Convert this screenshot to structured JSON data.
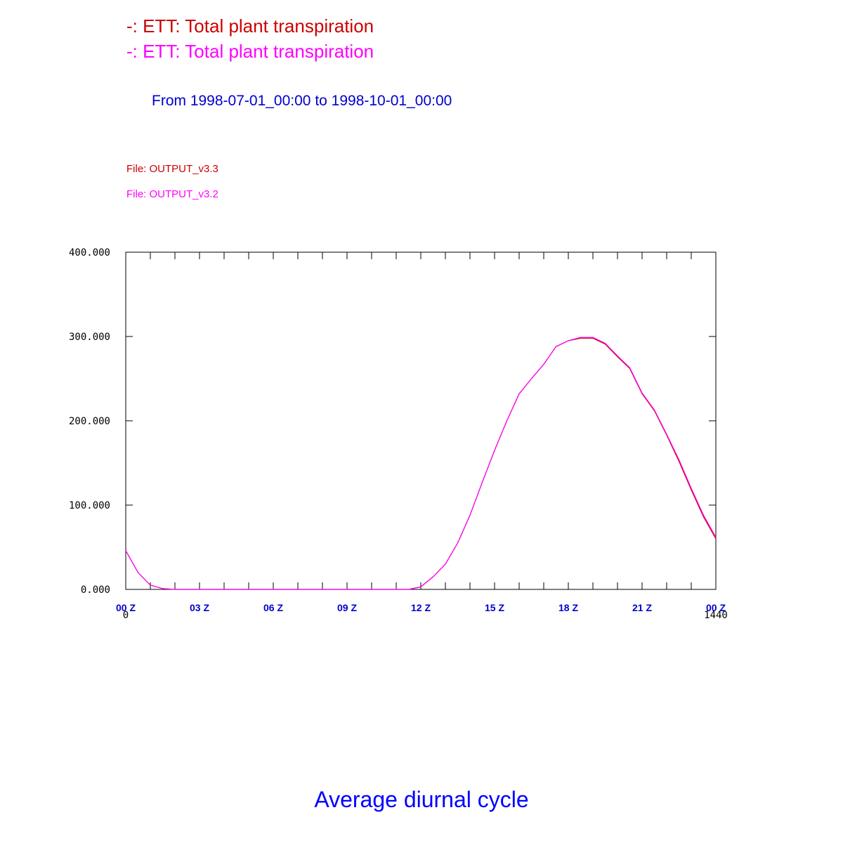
{
  "header": {
    "series_lines": [
      {
        "text": "-: ETT: Total plant transpiration",
        "color": "#cc0000"
      },
      {
        "text": "-: ETT: Total plant transpiration",
        "color": "#ff00ff"
      }
    ],
    "date_range": "From 1998-07-01_00:00 to 1998-10-01_00:00",
    "files": [
      {
        "text": "File: OUTPUT_v3.3",
        "color": "#cc0000"
      },
      {
        "text": "File: OUTPUT_v3.2",
        "color": "#ff00ff"
      }
    ]
  },
  "footer_title": "Average diurnal cycle",
  "colors": {
    "title_blue": "#0000ff",
    "dark_blue": "#0000cc",
    "axis": "#000000"
  },
  "chart_data": {
    "type": "line",
    "xlim": [
      0,
      24
    ],
    "ylim": [
      0,
      400
    ],
    "x_range_labels": [
      "0",
      "1440"
    ],
    "x_tick_labels": [
      "00 Z",
      "03 Z",
      "06 Z",
      "09 Z",
      "12 Z",
      "15 Z",
      "18 Z",
      "21 Z",
      "00 Z"
    ],
    "x_tick_values": [
      0,
      3,
      6,
      9,
      12,
      15,
      18,
      21,
      24
    ],
    "y_tick_labels": [
      "0.000",
      "100.000",
      "200.000",
      "300.000",
      "400.000"
    ],
    "y_tick_values": [
      0,
      100,
      200,
      300,
      400
    ],
    "minor_tick_step": 1,
    "grid": false,
    "x": [
      0,
      0.5,
      1,
      1.5,
      2,
      2.5,
      3,
      3.5,
      4,
      4.5,
      5,
      5.5,
      6,
      6.5,
      7,
      7.5,
      8,
      8.5,
      9,
      9.5,
      10,
      10.5,
      11,
      11.5,
      12,
      12.5,
      13,
      13.5,
      14,
      14.5,
      15,
      15.5,
      16,
      16.5,
      17,
      17.5,
      18,
      18.5,
      19,
      19.5,
      20,
      20.5,
      21,
      21.5,
      22,
      22.5,
      23,
      23.5,
      24
    ],
    "series": [
      {
        "color": "#cc0000",
        "values": [
          46,
          20,
          5,
          1,
          0,
          0,
          0,
          0,
          0,
          0,
          0,
          0,
          0,
          0,
          0,
          0,
          0,
          0,
          0,
          0,
          0,
          0,
          0,
          0,
          3,
          15,
          30,
          55,
          88,
          127,
          165,
          200,
          232,
          250,
          267,
          288,
          295,
          298,
          298,
          291,
          276,
          262,
          232,
          212,
          183,
          152,
          118,
          86,
          60
        ]
      },
      {
        "color": "#ff00ff",
        "values": [
          46,
          20,
          5,
          1,
          0,
          0,
          0,
          0,
          0,
          0,
          0,
          0,
          0,
          0,
          0,
          0,
          0,
          0,
          0,
          0,
          0,
          0,
          0,
          0,
          3,
          15,
          30,
          55,
          88,
          127,
          165,
          200,
          232,
          250,
          267,
          288,
          295,
          299,
          299,
          292,
          277,
          263,
          233,
          213,
          184,
          154,
          120,
          88,
          62
        ]
      }
    ]
  }
}
